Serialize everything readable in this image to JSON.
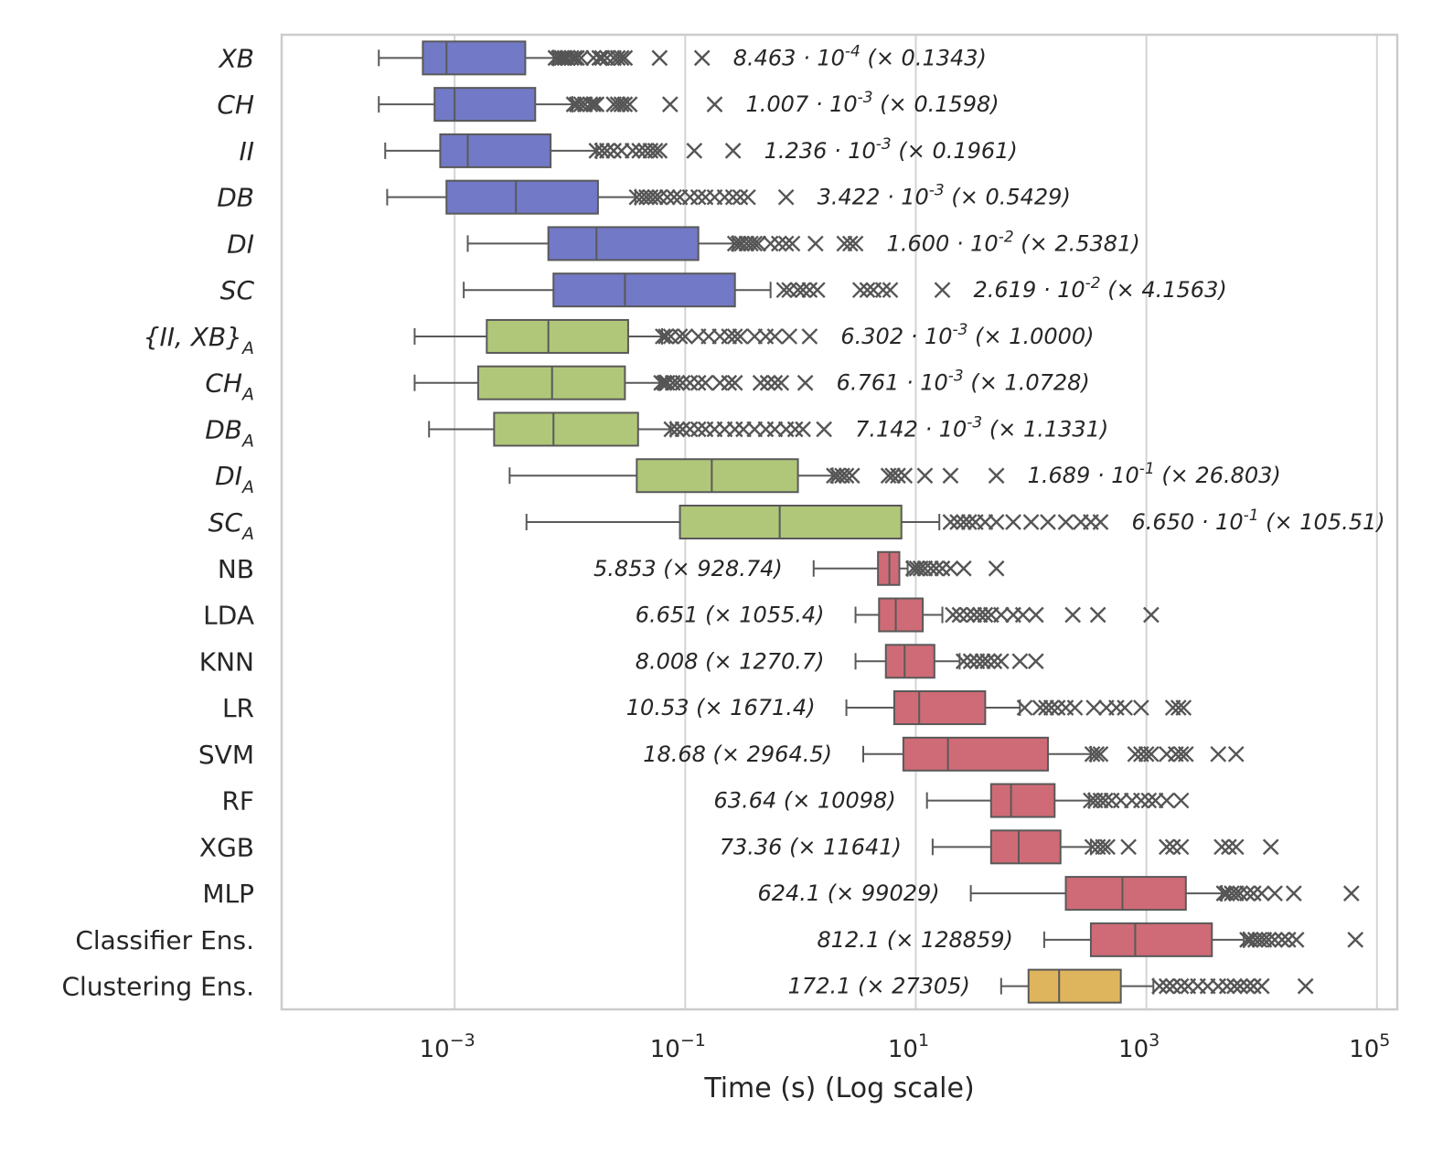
{
  "chart_data": {
    "type": "boxplot",
    "orientation": "horizontal",
    "xlabel": "Time (s) (Log scale)",
    "xscale": "log",
    "xlim": [
      3.16e-05,
      150000
    ],
    "xticks": [
      {
        "value": 0.001,
        "base": "10",
        "exp": "−3"
      },
      {
        "value": 0.1,
        "base": "10",
        "exp": "−1"
      },
      {
        "value": 10,
        "base": "10",
        "exp": "1"
      },
      {
        "value": 1000,
        "base": "10",
        "exp": "3"
      },
      {
        "value": 100000,
        "base": "10",
        "exp": "5"
      }
    ],
    "grid": "vertical",
    "colors": {
      "clustering_index": "#7279c6",
      "aggregated_index": "#b0c77a",
      "classifier": "#cf6b76",
      "ensemble": "#deb55c",
      "highlight_label": "#ff0000",
      "outline": "#595959"
    },
    "series": [
      {
        "name": "XB",
        "label": {
          "main": "XB",
          "sub": ""
        },
        "italic": true,
        "highlight": false,
        "color": "#7279c6",
        "stats": {
          "whisker_low": 0.00022,
          "q1": 0.00053,
          "median": 0.00085,
          "q3": 0.0041,
          "whisker_high": 0.0072
        },
        "outliers": [
          0.0075,
          0.008,
          0.0085,
          0.009,
          0.0095,
          0.0103,
          0.011,
          0.0115,
          0.0125,
          0.016,
          0.018,
          0.019,
          0.021,
          0.024,
          0.026,
          0.028,
          0.03,
          0.06,
          0.14
        ],
        "annotation": {
          "text": "8.463 · 10",
          "exp": "-4",
          "tail": " (× 0.1343)"
        }
      },
      {
        "name": "CH",
        "label": {
          "main": "CH",
          "sub": ""
        },
        "italic": true,
        "highlight": false,
        "color": "#7279c6",
        "stats": {
          "whisker_low": 0.00022,
          "q1": 0.00067,
          "median": 0.001,
          "q3": 0.005,
          "whisker_high": 0.0105
        },
        "outliers": [
          0.0108,
          0.0115,
          0.0125,
          0.0135,
          0.015,
          0.016,
          0.017,
          0.024,
          0.026,
          0.028,
          0.03,
          0.033,
          0.074,
          0.18
        ],
        "annotation": {
          "text": "1.007 · 10",
          "exp": "-3",
          "tail": " (× 0.1598)"
        }
      },
      {
        "name": "II",
        "label": {
          "main": "II",
          "sub": ""
        },
        "italic": true,
        "highlight": false,
        "color": "#7279c6",
        "stats": {
          "whisker_low": 0.00025,
          "q1": 0.00075,
          "median": 0.0013,
          "q3": 0.0068,
          "whisker_high": 0.017
        },
        "outliers": [
          0.017,
          0.019,
          0.021,
          0.024,
          0.028,
          0.035,
          0.04,
          0.045,
          0.05,
          0.055,
          0.06,
          0.12,
          0.26
        ],
        "annotation": {
          "text": "1.236 · 10",
          "exp": "-3",
          "tail": " (× 0.1961)"
        }
      },
      {
        "name": "DB",
        "label": {
          "main": "DB",
          "sub": ""
        },
        "italic": true,
        "highlight": false,
        "color": "#7279c6",
        "stats": {
          "whisker_low": 0.00026,
          "q1": 0.00085,
          "median": 0.0034,
          "q3": 0.0175,
          "whisker_high": 0.037
        },
        "outliers": [
          0.038,
          0.042,
          0.046,
          0.05,
          0.055,
          0.06,
          0.07,
          0.08,
          0.09,
          0.11,
          0.13,
          0.15,
          0.18,
          0.22,
          0.26,
          0.3,
          0.35,
          0.75
        ],
        "annotation": {
          "text": "3.422 · 10",
          "exp": "-3",
          "tail": " (× 0.5429)"
        }
      },
      {
        "name": "DI",
        "label": {
          "main": "DI",
          "sub": ""
        },
        "italic": true,
        "highlight": false,
        "color": "#7279c6",
        "stats": {
          "whisker_low": 0.0013,
          "q1": 0.0065,
          "median": 0.017,
          "q3": 0.13,
          "whisker_high": 0.26
        },
        "outliers": [
          0.27,
          0.29,
          0.31,
          0.34,
          0.37,
          0.4,
          0.43,
          0.55,
          0.65,
          0.75,
          0.85,
          1.35,
          2.4,
          2.7,
          3.0
        ],
        "annotation": {
          "text": "1.600 · 10",
          "exp": "-2",
          "tail": " (× 2.5381)"
        }
      },
      {
        "name": "SC",
        "label": {
          "main": "SC",
          "sub": ""
        },
        "italic": true,
        "highlight": false,
        "color": "#7279c6",
        "stats": {
          "whisker_low": 0.0012,
          "q1": 0.0072,
          "median": 0.03,
          "q3": 0.27,
          "whisker_high": 0.55
        },
        "outliers": [
          0.72,
          0.8,
          0.95,
          1.05,
          1.2,
          1.4,
          3.3,
          3.8,
          4.3,
          5.2,
          6.0,
          17.0
        ],
        "annotation": {
          "text": "2.619 · 10",
          "exp": "-2",
          "tail": " (× 4.1563)"
        }
      },
      {
        "name": "{II, XB}A",
        "label": {
          "main": "{II, XB}",
          "sub": "A"
        },
        "italic": true,
        "highlight": true,
        "color": "#b0c77a",
        "stats": {
          "whisker_low": 0.00045,
          "q1": 0.0019,
          "median": 0.0065,
          "q3": 0.032,
          "whisker_high": 0.063
        },
        "outliers": [
          0.064,
          0.068,
          0.075,
          0.09,
          0.1,
          0.13,
          0.16,
          0.2,
          0.24,
          0.27,
          0.3,
          0.4,
          0.5,
          0.6,
          0.8,
          1.2
        ],
        "annotation": {
          "text": "6.302 · 10",
          "exp": "-3",
          "tail": " (× 1.0000)"
        }
      },
      {
        "name": "CHA",
        "label": {
          "main": "CH",
          "sub": "A"
        },
        "italic": true,
        "highlight": false,
        "color": "#b0c77a",
        "stats": {
          "whisker_low": 0.00045,
          "q1": 0.0016,
          "median": 0.007,
          "q3": 0.03,
          "whisker_high": 0.06
        },
        "outliers": [
          0.062,
          0.066,
          0.07,
          0.078,
          0.085,
          0.095,
          0.11,
          0.13,
          0.15,
          0.2,
          0.24,
          0.27,
          0.45,
          0.52,
          0.6,
          0.68,
          1.1
        ],
        "annotation": {
          "text": "6.761 · 10",
          "exp": "-3",
          "tail": " (× 1.0728)"
        }
      },
      {
        "name": "DBA",
        "label": {
          "main": "DB",
          "sub": "A"
        },
        "italic": true,
        "highlight": false,
        "color": "#b0c77a",
        "stats": {
          "whisker_low": 0.0006,
          "q1": 0.0022,
          "median": 0.0072,
          "q3": 0.039,
          "whisker_high": 0.075
        },
        "outliers": [
          0.076,
          0.085,
          0.095,
          0.11,
          0.13,
          0.15,
          0.18,
          0.22,
          0.27,
          0.32,
          0.4,
          0.5,
          0.6,
          0.75,
          0.9,
          1.05,
          1.6
        ],
        "annotation": {
          "text": "7.142 · 10",
          "exp": "-3",
          "tail": " (× 1.1331)"
        }
      },
      {
        "name": "DIA",
        "label": {
          "main": "DI",
          "sub": "A"
        },
        "italic": true,
        "highlight": false,
        "color": "#b0c77a",
        "stats": {
          "whisker_low": 0.003,
          "q1": 0.038,
          "median": 0.17,
          "q3": 0.95,
          "whisker_high": 1.9
        },
        "outliers": [
          1.95,
          2.1,
          2.3,
          2.5,
          2.8,
          5.8,
          6.3,
          7.0,
          8.0,
          12.0,
          20.0,
          50.0
        ],
        "annotation": {
          "text": "1.689 · 10",
          "exp": "-1",
          "tail": " (× 26.803)"
        }
      },
      {
        "name": "SCA",
        "label": {
          "main": "SC",
          "sub": "A"
        },
        "italic": true,
        "highlight": false,
        "color": "#b0c77a",
        "stats": {
          "whisker_low": 0.0042,
          "q1": 0.09,
          "median": 0.66,
          "q3": 7.5,
          "whisker_high": 16.0
        },
        "outliers": [
          20.0,
          23.0,
          26.0,
          29.0,
          33.0,
          40.0,
          50.0,
          70.0,
          100.0,
          140.0,
          200.0,
          270.0,
          330.0,
          400.0
        ],
        "annotation": {
          "text": "6.650 · 10",
          "exp": "-1",
          "tail": " (× 105.51)"
        }
      },
      {
        "name": "NB",
        "label": {
          "main": "NB",
          "sub": ""
        },
        "italic": false,
        "highlight": false,
        "color": "#cf6b76",
        "stats": {
          "whisker_low": 1.3,
          "q1": 4.7,
          "median": 5.9,
          "q3": 7.2,
          "whisker_high": 8.5
        },
        "outliers": [
          9.5,
          10.2,
          11.0,
          12.0,
          13.5,
          15.0,
          17.0,
          20.0,
          26.0,
          50.0
        ],
        "annotation": {
          "text": "5.853 (× 928.74)",
          "exp": "",
          "tail": ""
        }
      },
      {
        "name": "LDA",
        "label": {
          "main": "LDA",
          "sub": ""
        },
        "italic": false,
        "highlight": false,
        "color": "#cf6b76",
        "stats": {
          "whisker_low": 3.0,
          "q1": 4.8,
          "median": 6.7,
          "q3": 11.5,
          "whisker_high": 17.0
        },
        "outliers": [
          21.0,
          24.0,
          28.0,
          32.0,
          36.0,
          40.0,
          45.0,
          55.0,
          70.0,
          85.0,
          110.0,
          230.0,
          380.0,
          1100.0
        ],
        "annotation": {
          "text": "6.651 (× 1055.4)",
          "exp": "",
          "tail": ""
        }
      },
      {
        "name": "KNN",
        "label": {
          "main": "KNN",
          "sub": ""
        },
        "italic": false,
        "highlight": false,
        "color": "#cf6b76",
        "stats": {
          "whisker_low": 3.0,
          "q1": 5.5,
          "median": 8.0,
          "q3": 14.5,
          "whisker_high": 24.0
        },
        "outliers": [
          26.0,
          30.0,
          34.0,
          38.0,
          42.0,
          48.0,
          55.0,
          80.0,
          110.0
        ],
        "annotation": {
          "text": "8.008 (× 1270.7)",
          "exp": "",
          "tail": ""
        }
      },
      {
        "name": "LR",
        "label": {
          "main": "LR",
          "sub": ""
        },
        "italic": false,
        "highlight": false,
        "color": "#cf6b76",
        "stats": {
          "whisker_low": 2.5,
          "q1": 6.5,
          "median": 10.7,
          "q3": 40.0,
          "whisker_high": 80.0
        },
        "outliers": [
          88.0,
          120.0,
          135.0,
          150.0,
          170.0,
          200.0,
          240.0,
          350.0,
          450.0,
          550.0,
          650.0,
          900.0,
          1700.0,
          1900.0,
          2100.0
        ],
        "annotation": {
          "text": "10.53 (× 1671.4)",
          "exp": "",
          "tail": ""
        }
      },
      {
        "name": "SVM",
        "label": {
          "main": "SVM",
          "sub": ""
        },
        "italic": false,
        "highlight": false,
        "color": "#cf6b76",
        "stats": {
          "whisker_low": 3.5,
          "q1": 7.8,
          "median": 19.0,
          "q3": 140.0,
          "whisker_high": 330.0
        },
        "outliers": [
          340.0,
          370.0,
          400.0,
          800.0,
          900.0,
          1000.0,
          1100.0,
          1500.0,
          1800.0,
          2000.0,
          2200.0,
          4200.0,
          6000.0
        ],
        "annotation": {
          "text": "18.68 (× 2964.5)",
          "exp": "",
          "tail": ""
        }
      },
      {
        "name": "RF",
        "label": {
          "main": "RF",
          "sub": ""
        },
        "italic": false,
        "highlight": false,
        "color": "#cf6b76",
        "stats": {
          "whisker_low": 12.5,
          "q1": 45.0,
          "median": 67.0,
          "q3": 160.0,
          "whisker_high": 320.0
        },
        "outliers": [
          330.0,
          360.0,
          400.0,
          440.0,
          500.0,
          600.0,
          750.0,
          900.0,
          1050.0,
          1200.0,
          1500.0,
          2000.0
        ],
        "annotation": {
          "text": "63.64 (× 10098)",
          "exp": "",
          "tail": ""
        }
      },
      {
        "name": "XGB",
        "label": {
          "main": "XGB",
          "sub": ""
        },
        "italic": false,
        "highlight": false,
        "color": "#cf6b76",
        "stats": {
          "whisker_low": 14.0,
          "q1": 45.0,
          "median": 78.0,
          "q3": 180.0,
          "whisker_high": 330.0
        },
        "outliers": [
          340.0,
          380.0,
          420.0,
          460.0,
          700.0,
          1500.0,
          1700.0,
          2000.0,
          4500.0,
          5200.0,
          6000.0,
          12000.0
        ],
        "annotation": {
          "text": "73.36 (× 11641)",
          "exp": "",
          "tail": ""
        }
      },
      {
        "name": "MLP",
        "label": {
          "main": "MLP",
          "sub": ""
        },
        "italic": false,
        "highlight": false,
        "color": "#cf6b76",
        "stats": {
          "whisker_low": 30.0,
          "q1": 200.0,
          "median": 620.0,
          "q3": 2200.0,
          "whisker_high": 4500.0
        },
        "outliers": [
          4700.0,
          5000.0,
          5500.0,
          6000.0,
          6500.0,
          7500.0,
          8500.0,
          10000.0,
          13000.0,
          19000.0,
          60000.0
        ],
        "annotation": {
          "text": "624.1 (× 99029)",
          "exp": "",
          "tail": ""
        }
      },
      {
        "name": "Classifier Ens.",
        "label": {
          "main": "Classifier Ens.",
          "sub": ""
        },
        "italic": false,
        "highlight": false,
        "color": "#cf6b76",
        "stats": {
          "whisker_low": 130.0,
          "q1": 330.0,
          "median": 800.0,
          "q3": 3700.0,
          "whisker_high": 7000.0
        },
        "outliers": [
          7500.0,
          8000.0,
          8800.0,
          9600.0,
          10500.0,
          11500.0,
          13000.0,
          15000.0,
          17000.0,
          20000.0,
          65000.0
        ],
        "annotation": {
          "text": "812.1 (× 128859)",
          "exp": "",
          "tail": ""
        }
      },
      {
        "name": "Clustering Ens.",
        "label": {
          "main": "Clustering Ens.",
          "sub": ""
        },
        "italic": false,
        "highlight": false,
        "color": "#deb55c",
        "stats": {
          "whisker_low": 55.0,
          "q1": 95.0,
          "median": 175.0,
          "q3": 600.0,
          "whisker_high": 1150.0
        },
        "outliers": [
          1300.0,
          1500.0,
          1700.0,
          2000.0,
          2300.0,
          2800.0,
          3400.0,
          4200.0,
          5000.0,
          5800.0,
          6500.0,
          7500.0,
          8500.0,
          10000.0,
          24000.0
        ],
        "annotation": {
          "text": "172.1 (× 27305)",
          "exp": "",
          "tail": ""
        }
      }
    ]
  }
}
